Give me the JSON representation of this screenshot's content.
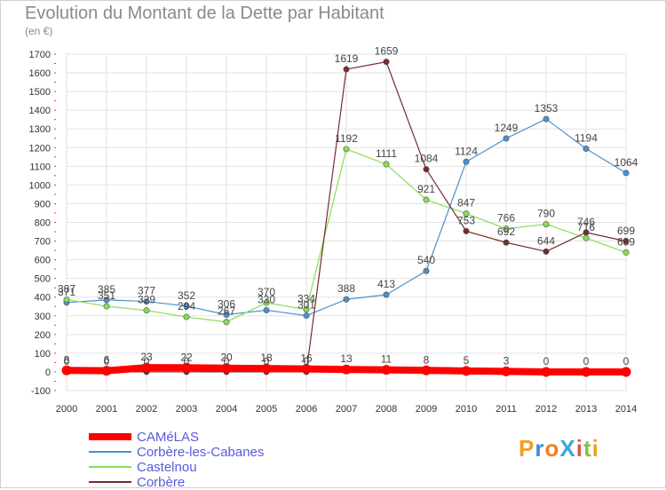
{
  "title": "Evolution du Montant de la Dette par Habitant",
  "unit_label": "(en €)",
  "logo_text": "ProXiti",
  "chart_data": {
    "type": "line",
    "title": "Evolution du Montant de la Dette par Habitant",
    "ylabel": "(en €)",
    "xlabel": "",
    "x": [
      "2000",
      "2001",
      "2002",
      "2003",
      "2004",
      "2005",
      "2006",
      "2007",
      "2008",
      "2009",
      "2010",
      "2011",
      "2012",
      "2013",
      "2014"
    ],
    "ylim": [
      -100,
      1700
    ],
    "yticks": [
      -100,
      0,
      100,
      200,
      300,
      400,
      500,
      600,
      700,
      800,
      900,
      1000,
      1100,
      1200,
      1300,
      1400,
      1500,
      1600,
      1700
    ],
    "grid": true,
    "legend_position": "bottom-left",
    "series": [
      {
        "name": "CAMéLAS",
        "color": "#ff0000",
        "values": [
          8,
          6,
          23,
          22,
          20,
          18,
          16,
          13,
          11,
          8,
          5,
          3,
          0,
          0,
          0
        ]
      },
      {
        "name": "Corbère-les-Cabanes",
        "color": "#4a90d0",
        "values": [
          371,
          385,
          377,
          352,
          306,
          330,
          301,
          388,
          413,
          540,
          1124,
          1249,
          1353,
          1194,
          1064
        ]
      },
      {
        "name": "Castelnou",
        "color": "#88dd55",
        "values": [
          387,
          351,
          329,
          294,
          267,
          370,
          334,
          1192,
          1111,
          921,
          847,
          766,
          790,
          716,
          639
        ]
      },
      {
        "name": "Corbère",
        "color": "#7a2a2a",
        "values": [
          0,
          0,
          0,
          0,
          0,
          0,
          0,
          1619,
          1659,
          1084,
          753,
          692,
          644,
          746,
          699
        ]
      }
    ]
  }
}
